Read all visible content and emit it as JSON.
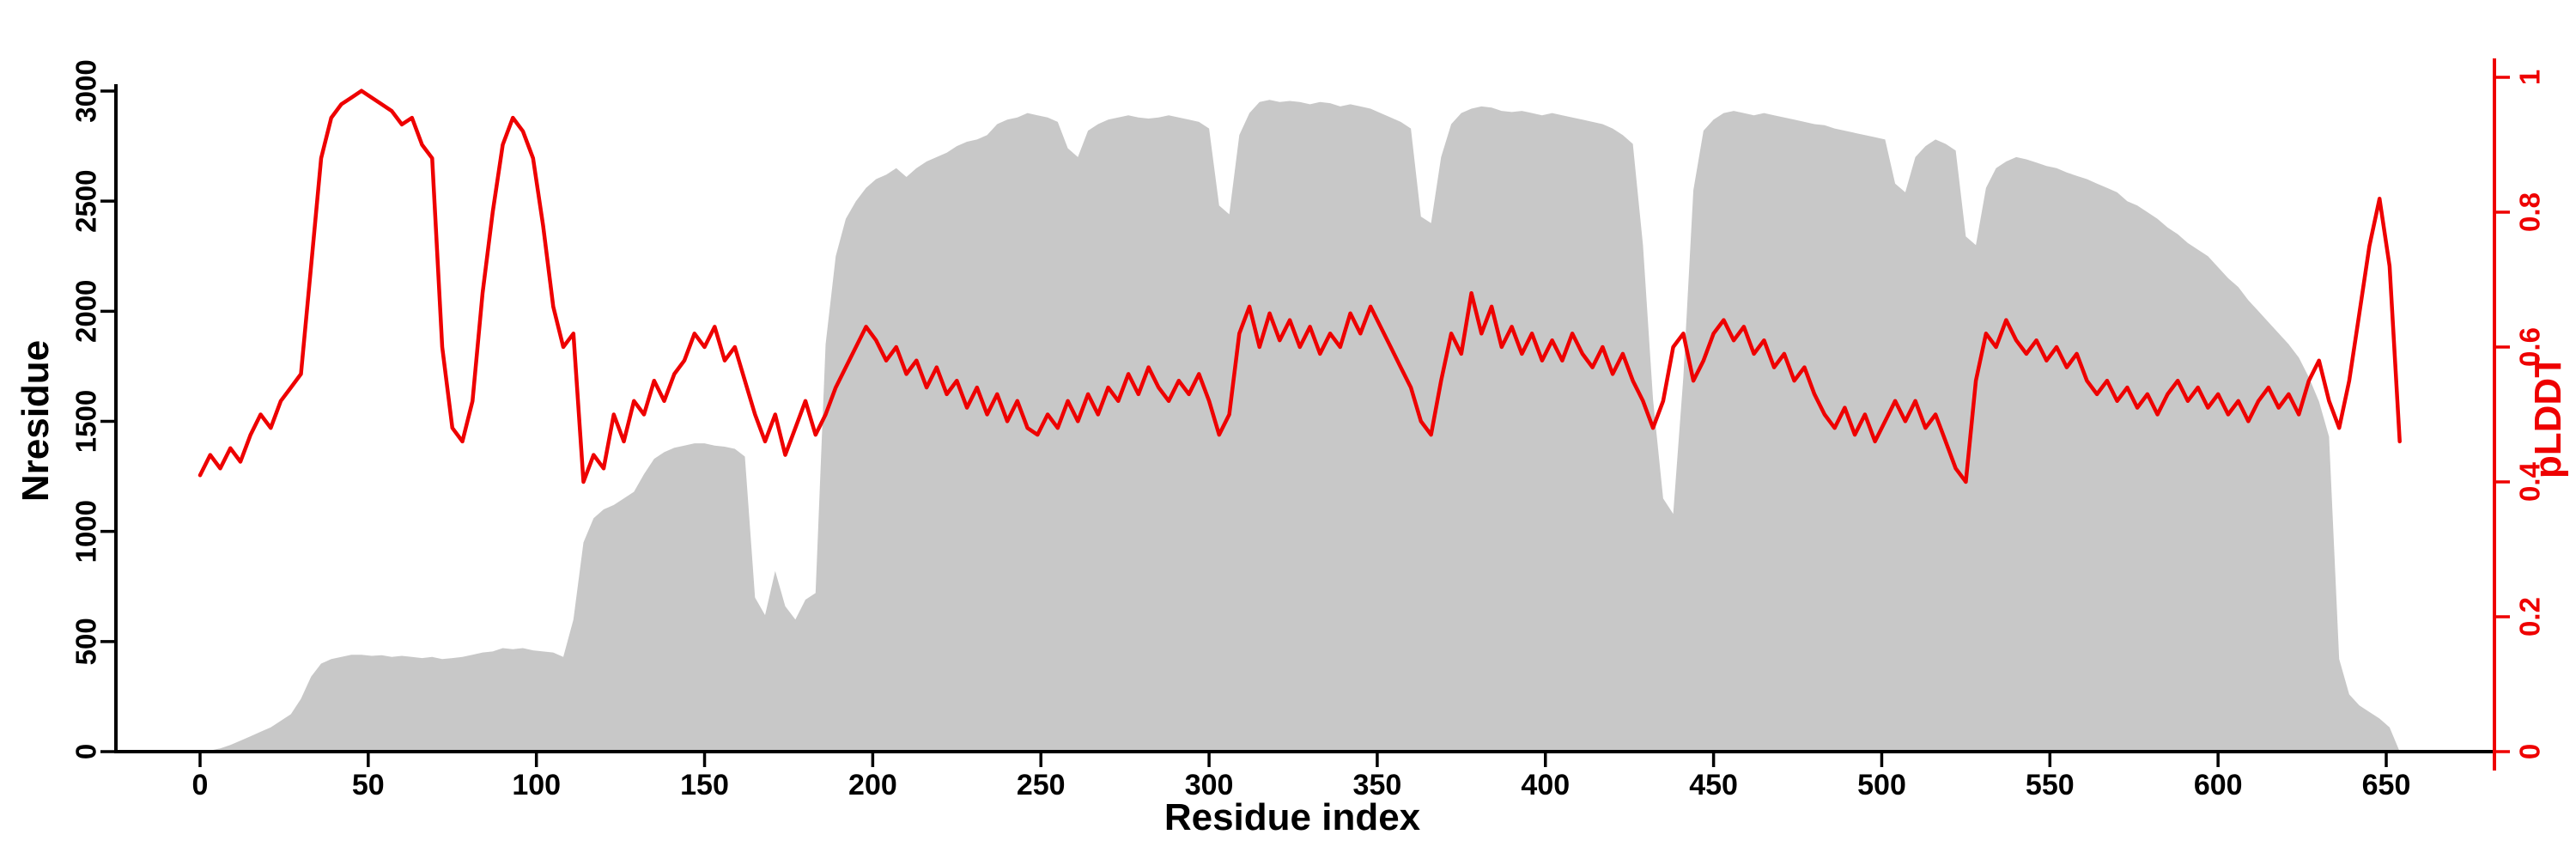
{
  "page": {
    "background": "#ffffff"
  },
  "chart_data": {
    "type": "line",
    "title": "",
    "xlabel": "Residue index",
    "ylabel_left": "Nresidue",
    "ylabel_right": "pLDDT",
    "grid": false,
    "legend": "none",
    "xlim": [
      0,
      660
    ],
    "ylim_left": [
      0,
      3000
    ],
    "ylim_right": [
      0,
      1
    ],
    "x_ticks": [
      0,
      50,
      100,
      150,
      200,
      250,
      300,
      350,
      400,
      450,
      500,
      550,
      600,
      650
    ],
    "y_left_ticks": [
      0,
      500,
      1000,
      1500,
      2000,
      2500,
      3000
    ],
    "y_right_ticks": [
      0,
      0.2,
      0.4,
      0.6,
      0.8,
      1
    ],
    "colors": {
      "area": "#c8c8c8",
      "line": "#ee0000",
      "axis": "#000000"
    },
    "x": [
      0,
      3,
      6,
      9,
      12,
      15,
      18,
      21,
      24,
      27,
      30,
      33,
      36,
      39,
      42,
      45,
      48,
      51,
      54,
      57,
      60,
      63,
      66,
      69,
      72,
      75,
      78,
      81,
      84,
      87,
      90,
      93,
      96,
      99,
      102,
      105,
      108,
      111,
      114,
      117,
      120,
      123,
      126,
      129,
      132,
      135,
      138,
      141,
      144,
      147,
      150,
      153,
      156,
      159,
      162,
      165,
      168,
      171,
      174,
      177,
      180,
      183,
      186,
      189,
      192,
      195,
      198,
      201,
      204,
      207,
      210,
      213,
      216,
      219,
      222,
      225,
      228,
      231,
      234,
      237,
      240,
      243,
      246,
      249,
      252,
      255,
      258,
      261,
      264,
      267,
      270,
      273,
      276,
      279,
      282,
      285,
      288,
      291,
      294,
      297,
      300,
      303,
      306,
      309,
      312,
      315,
      318,
      321,
      324,
      327,
      330,
      333,
      336,
      339,
      342,
      345,
      348,
      351,
      354,
      357,
      360,
      363,
      366,
      369,
      372,
      375,
      378,
      381,
      384,
      387,
      390,
      393,
      396,
      399,
      402,
      405,
      408,
      411,
      414,
      417,
      420,
      423,
      426,
      429,
      432,
      435,
      438,
      441,
      444,
      447,
      450,
      453,
      456,
      459,
      462,
      465,
      468,
      471,
      474,
      477,
      480,
      483,
      486,
      489,
      492,
      495,
      498,
      501,
      504,
      507,
      510,
      513,
      516,
      519,
      522,
      525,
      528,
      531,
      534,
      537,
      540,
      543,
      546,
      549,
      552,
      555,
      558,
      561,
      564,
      567,
      570,
      573,
      576,
      579,
      582,
      585,
      588,
      591,
      594,
      597,
      600,
      603,
      606,
      609,
      612,
      615,
      618,
      621,
      624,
      627,
      630,
      633,
      636,
      639,
      642,
      645,
      648,
      651,
      654
    ],
    "series": [
      {
        "name": "Nresidue",
        "type": "area",
        "axis": "left",
        "color": "#c8c8c8",
        "values": [
          0,
          5,
          15,
          30,
          50,
          70,
          90,
          110,
          140,
          170,
          240,
          340,
          400,
          420,
          430,
          440,
          440,
          435,
          438,
          430,
          435,
          430,
          425,
          430,
          420,
          425,
          430,
          440,
          450,
          455,
          470,
          465,
          470,
          460,
          455,
          450,
          430,
          600,
          950,
          1060,
          1100,
          1120,
          1150,
          1180,
          1260,
          1330,
          1360,
          1380,
          1390,
          1400,
          1400,
          1390,
          1385,
          1375,
          1340,
          700,
          620,
          820,
          660,
          600,
          690,
          720,
          1850,
          2250,
          2420,
          2500,
          2560,
          2600,
          2620,
          2650,
          2610,
          2650,
          2680,
          2700,
          2720,
          2750,
          2770,
          2780,
          2800,
          2850,
          2870,
          2880,
          2900,
          2890,
          2880,
          2860,
          2740,
          2700,
          2820,
          2850,
          2870,
          2880,
          2890,
          2880,
          2875,
          2880,
          2890,
          2880,
          2870,
          2860,
          2830,
          2480,
          2440,
          2800,
          2900,
          2950,
          2960,
          2950,
          2955,
          2950,
          2940,
          2950,
          2945,
          2930,
          2940,
          2930,
          2920,
          2900,
          2880,
          2860,
          2830,
          2430,
          2400,
          2700,
          2850,
          2900,
          2920,
          2930,
          2925,
          2910,
          2905,
          2910,
          2900,
          2890,
          2900,
          2890,
          2880,
          2870,
          2860,
          2850,
          2830,
          2800,
          2760,
          2300,
          1600,
          1150,
          1080,
          1700,
          2550,
          2820,
          2870,
          2900,
          2910,
          2900,
          2890,
          2900,
          2890,
          2880,
          2870,
          2860,
          2850,
          2845,
          2830,
          2820,
          2810,
          2800,
          2790,
          2780,
          2580,
          2540,
          2700,
          2750,
          2780,
          2760,
          2730,
          2340,
          2300,
          2560,
          2650,
          2680,
          2700,
          2690,
          2675,
          2660,
          2650,
          2630,
          2615,
          2600,
          2580,
          2560,
          2540,
          2500,
          2480,
          2450,
          2420,
          2380,
          2350,
          2310,
          2280,
          2250,
          2200,
          2150,
          2110,
          2050,
          2000,
          1950,
          1900,
          1850,
          1790,
          1700,
          1590,
          1430,
          420,
          260,
          210,
          180,
          150,
          110,
          0
        ]
      },
      {
        "name": "pLDDT",
        "type": "line",
        "axis": "right",
        "color": "#ee0000",
        "values": [
          0.41,
          0.44,
          0.42,
          0.45,
          0.43,
          0.47,
          0.5,
          0.48,
          0.52,
          0.54,
          0.56,
          0.72,
          0.88,
          0.94,
          0.96,
          0.97,
          0.98,
          0.97,
          0.96,
          0.95,
          0.93,
          0.94,
          0.9,
          0.88,
          0.6,
          0.48,
          0.46,
          0.52,
          0.68,
          0.8,
          0.9,
          0.94,
          0.92,
          0.88,
          0.78,
          0.66,
          0.6,
          0.62,
          0.4,
          0.44,
          0.42,
          0.5,
          0.46,
          0.52,
          0.5,
          0.55,
          0.52,
          0.56,
          0.58,
          0.62,
          0.6,
          0.63,
          0.58,
          0.6,
          0.55,
          0.5,
          0.46,
          0.5,
          0.44,
          0.48,
          0.52,
          0.47,
          0.5,
          0.54,
          0.57,
          0.6,
          0.63,
          0.61,
          0.58,
          0.6,
          0.56,
          0.58,
          0.54,
          0.57,
          0.53,
          0.55,
          0.51,
          0.54,
          0.5,
          0.53,
          0.49,
          0.52,
          0.48,
          0.47,
          0.5,
          0.48,
          0.52,
          0.49,
          0.53,
          0.5,
          0.54,
          0.52,
          0.56,
          0.53,
          0.57,
          0.54,
          0.52,
          0.55,
          0.53,
          0.56,
          0.52,
          0.47,
          0.5,
          0.62,
          0.66,
          0.6,
          0.65,
          0.61,
          0.64,
          0.6,
          0.63,
          0.59,
          0.62,
          0.6,
          0.65,
          0.62,
          0.66,
          0.63,
          0.6,
          0.57,
          0.54,
          0.49,
          0.47,
          0.55,
          0.62,
          0.59,
          0.68,
          0.62,
          0.66,
          0.6,
          0.63,
          0.59,
          0.62,
          0.58,
          0.61,
          0.58,
          0.62,
          0.59,
          0.57,
          0.6,
          0.56,
          0.59,
          0.55,
          0.52,
          0.48,
          0.52,
          0.6,
          0.62,
          0.55,
          0.58,
          0.62,
          0.64,
          0.61,
          0.63,
          0.59,
          0.61,
          0.57,
          0.59,
          0.55,
          0.57,
          0.53,
          0.5,
          0.48,
          0.51,
          0.47,
          0.5,
          0.46,
          0.49,
          0.52,
          0.49,
          0.52,
          0.48,
          0.5,
          0.46,
          0.42,
          0.4,
          0.55,
          0.62,
          0.6,
          0.64,
          0.61,
          0.59,
          0.61,
          0.58,
          0.6,
          0.57,
          0.59,
          0.55,
          0.53,
          0.55,
          0.52,
          0.54,
          0.51,
          0.53,
          0.5,
          0.53,
          0.55,
          0.52,
          0.54,
          0.51,
          0.53,
          0.5,
          0.52,
          0.49,
          0.52,
          0.54,
          0.51,
          0.53,
          0.5,
          0.55,
          0.58,
          0.52,
          0.48,
          0.55,
          0.65,
          0.75,
          0.82,
          0.72,
          0.46
        ]
      }
    ]
  }
}
